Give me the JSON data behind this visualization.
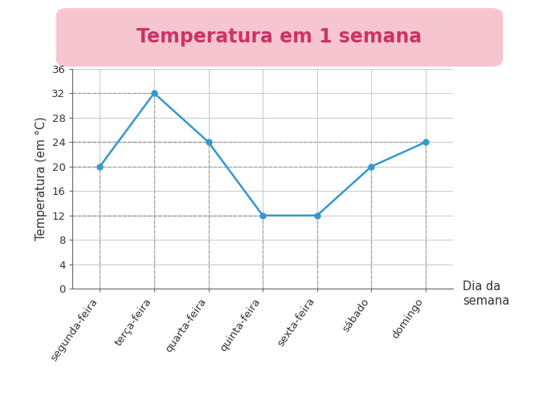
{
  "title": "Temperatura em 1 semana",
  "xlabel": "Dia da\nsemana",
  "ylabel": "Temperatura (em °C)",
  "days": [
    "segunda-feira",
    "terça-feira",
    "quarta-feira",
    "quinta-feira",
    "sexta-feira",
    "sábado",
    "domingo"
  ],
  "values": [
    20,
    32,
    24,
    12,
    12,
    20,
    24
  ],
  "ylim": [
    0,
    36
  ],
  "yticks": [
    0,
    4,
    8,
    12,
    16,
    20,
    24,
    28,
    32,
    36
  ],
  "line_color": "#3399cc",
  "marker_color": "#3399cc",
  "grid_color": "#bbbbbb",
  "dashed_color": "#555555",
  "bg_outer": "#f5c6d0",
  "bg_inner": "#ffffff",
  "title_color": "#cc3366",
  "title_bg": "#f5c6d0",
  "border_color": "#cc3366",
  "axis_label_color": "#333333",
  "tick_label_color": "#333333",
  "title_fontsize": 17,
  "axis_label_fontsize": 10.5,
  "tick_fontsize": 9.5
}
